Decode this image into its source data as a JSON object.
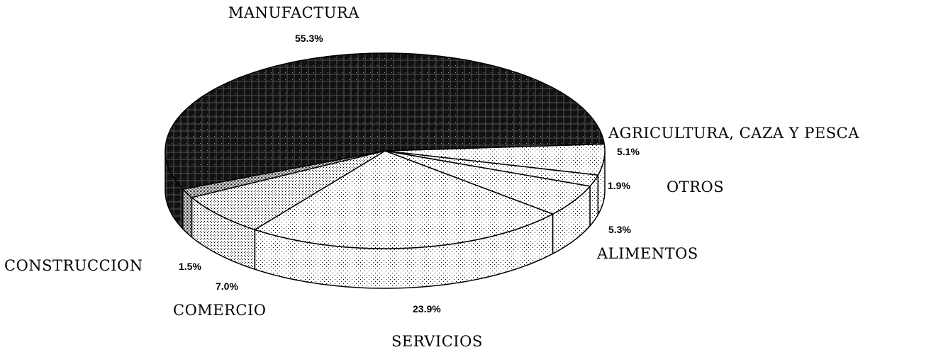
{
  "chart_data": {
    "type": "pie",
    "style": "3d",
    "title": "",
    "start": "right, clockwise",
    "slices": [
      {
        "label": "AGRICULTURA, CAZA Y PESCA",
        "value": 5.1,
        "pct_label": "5.1%",
        "fill": "light-dotted"
      },
      {
        "label": "OTROS",
        "value": 1.9,
        "pct_label": "1.9%",
        "fill": "light-dotted"
      },
      {
        "label": "ALIMENTOS",
        "value": 5.3,
        "pct_label": "5.3%",
        "fill": "light-dotted"
      },
      {
        "label": "SERVICIOS",
        "value": 23.9,
        "pct_label": "23.9%",
        "fill": "light-dotted"
      },
      {
        "label": "COMERCIO",
        "value": 7.0,
        "pct_label": "7.0%",
        "fill": "medium-dotted"
      },
      {
        "label": "CONSTRUCCION",
        "value": 1.5,
        "pct_label": "1.5%",
        "fill": "dense-dotted"
      },
      {
        "label": "MANUFACTURA",
        "value": 55.3,
        "pct_label": "55.3%",
        "fill": "dark-crosshatch"
      }
    ],
    "colors": {
      "dark": "#111111",
      "light": "#ffffff",
      "outline": "#000000"
    }
  }
}
